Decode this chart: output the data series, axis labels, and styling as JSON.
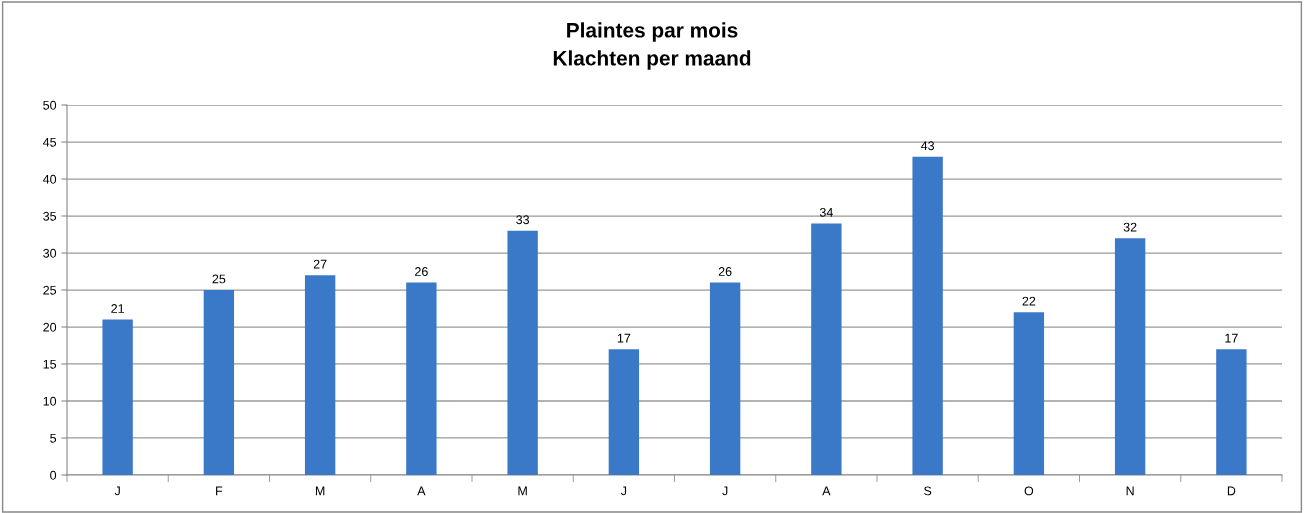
{
  "chart_data": {
    "type": "bar",
    "title": "Plaintes par mois",
    "subtitle": "Klachten per maand",
    "categories": [
      "J",
      "F",
      "M",
      "A",
      "M",
      "J",
      "J",
      "A",
      "S",
      "O",
      "N",
      "D"
    ],
    "values": [
      21,
      25,
      27,
      26,
      33,
      17,
      26,
      34,
      43,
      22,
      32,
      17
    ],
    "color": "#3a78c8",
    "ylim": [
      0,
      50
    ],
    "yticks": [
      0,
      5,
      10,
      15,
      20,
      25,
      30,
      35,
      40,
      45,
      50
    ],
    "grid": "y",
    "data_labels": true,
    "legend": false
  }
}
